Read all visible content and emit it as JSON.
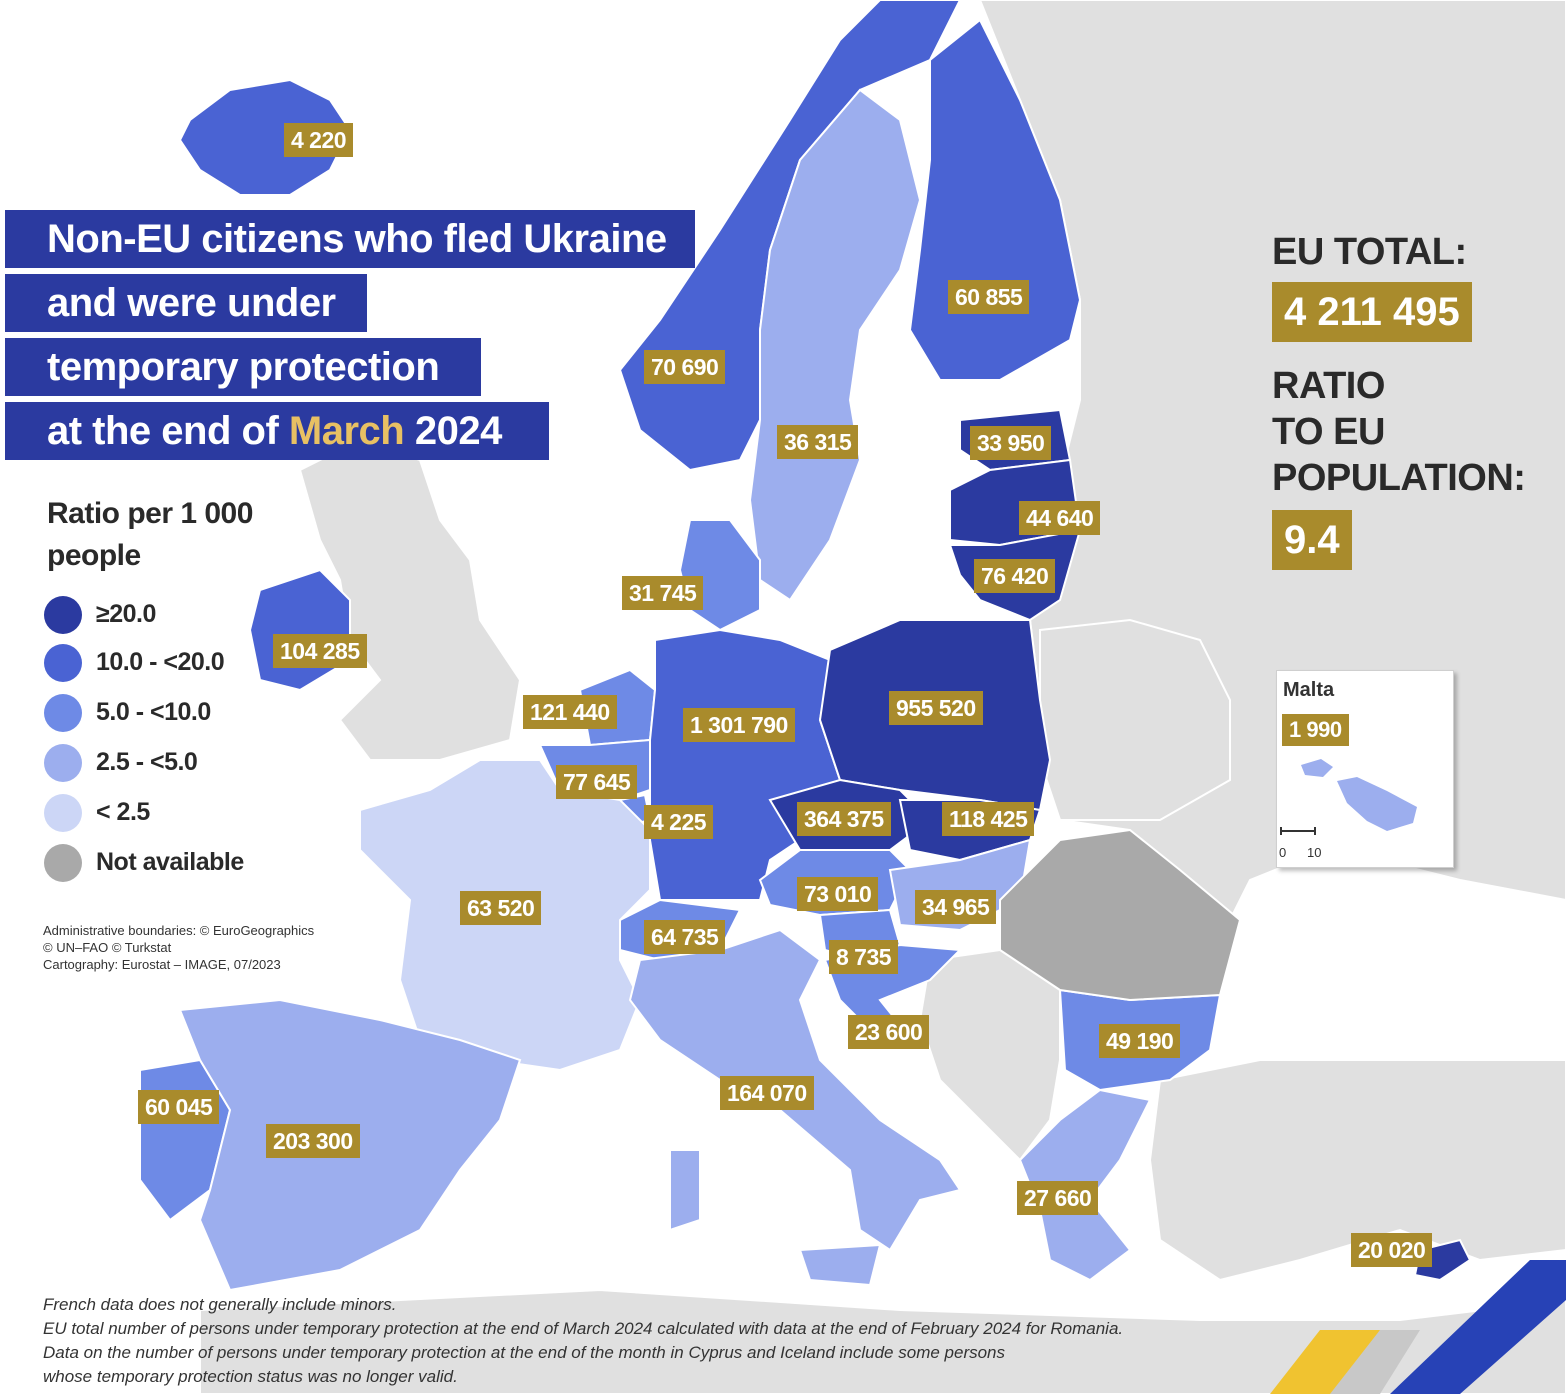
{
  "title": {
    "line1": "Non-EU citizens who fled Ukraine",
    "line2": "and were under",
    "line3": "temporary protection",
    "line4_prefix": "at the end of",
    "line4_month": "March",
    "line4_year": "2024"
  },
  "eu_total": {
    "label": "EU TOTAL:",
    "value": "4 211 495"
  },
  "ratio": {
    "line1": "RATIO",
    "line2": "TO EU",
    "line3": "POPULATION:",
    "value": "9.4"
  },
  "legend": {
    "title": "Ratio per 1 000 people",
    "items": [
      {
        "label": "≥20.0",
        "color": "#2b3aa0"
      },
      {
        "label": "10.0 - <20.0",
        "color": "#4a63d3"
      },
      {
        "label": "5.0 - <10.0",
        "color": "#6e8ae6"
      },
      {
        "label": "2.5 - <5.0",
        "color": "#9caeee"
      },
      {
        "label": "< 2.5",
        "color": "#ccd6f6"
      },
      {
        "label": "Not available",
        "color": "#a9a9a9"
      }
    ]
  },
  "countries": {
    "iceland": "4 220",
    "norway": "70 690",
    "sweden": "36 315",
    "finland": "60 855",
    "estonia": "33 950",
    "latvia": "44 640",
    "lithuania": "76 420",
    "denmark": "31 745",
    "ireland": "104 285",
    "netherlands": "121 440",
    "belgium": "77 645",
    "luxembourg": "4 225",
    "germany": "1 301 790",
    "poland": "955 520",
    "czechia": "364 375",
    "slovakia": "118 425",
    "austria": "73 010",
    "hungary": "34 965",
    "slovenia": "8 735",
    "croatia": "23 600",
    "switzerland": "64 735",
    "france": "63 520",
    "italy": "164 070",
    "bulgaria": "49 190",
    "greece": "27 660",
    "portugal": "60 045",
    "spain": "203 300",
    "cyprus": "20 020",
    "malta": "1 990"
  },
  "inset": {
    "title": "Malta",
    "scale_0": "0",
    "scale_10": "10"
  },
  "credits": [
    "Administrative boundaries: © EuroGeographics",
    "© UN–FAO © Turkstat",
    "Cartography: Eurostat – IMAGE, 07/2023"
  ],
  "footnotes": [
    "French data does not generally include minors.",
    "EU total number of persons under temporary protection at the end of March 2024 calculated with data at the end of February 2024 for Romania.",
    "Data on the number of persons under temporary protection at the end of the month in Cyprus and Iceland include some persons",
    "whose temporary protection status was no longer valid."
  ],
  "colors": {
    "class_20_plus": "#2b3aa0",
    "class_10_20": "#4a63d3",
    "class_5_10": "#6e8ae6",
    "class_2_5_5": "#9caeee",
    "class_lt_2_5": "#ccd6f6",
    "not_available": "#a9a9a9",
    "non_eu_land": "#e0e0e0",
    "sea": "#ffffff",
    "label_gold": "#a98b2c",
    "title_blue": "#2b3aa0",
    "title_accent": "#e8c063"
  }
}
